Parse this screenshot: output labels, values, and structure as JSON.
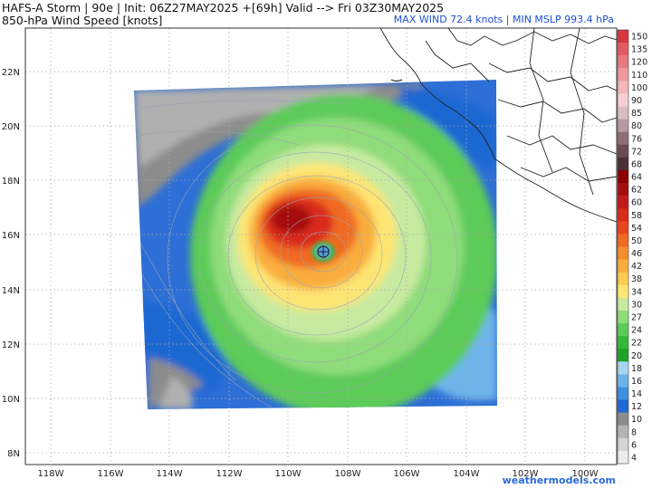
{
  "header": {
    "title_line1": "HAFS-A Storm | 90e | Init: 06Z27MAY2025 +[69h] Valid --> Fri 03Z30MAY2025",
    "title_line2": "850-hPa Wind Speed [knots]",
    "stats": "MAX WIND 72.4 knots | MIN MSLP 993.4 hPa"
  },
  "map": {
    "lat_labels": [
      "22N",
      "20N",
      "18N",
      "16N",
      "14N",
      "12N",
      "10N",
      "8N"
    ],
    "lon_labels": [
      "118W",
      "116W",
      "114W",
      "112W",
      "110W",
      "108W",
      "106W",
      "104W",
      "102W",
      "100W"
    ],
    "storm_center": {
      "lon": -108.9,
      "lat": 15.4
    }
  },
  "colorbar": {
    "levels": [
      "150",
      "135",
      "120",
      "110",
      "100",
      "90",
      "85",
      "80",
      "76",
      "72",
      "68",
      "64",
      "62",
      "60",
      "58",
      "54",
      "50",
      "46",
      "42",
      "38",
      "34",
      "30",
      "27",
      "24",
      "22",
      "20",
      "18",
      "16",
      "14",
      "12",
      "10",
      "8",
      "6",
      "4"
    ],
    "colors": [
      "#d8363f",
      "#e25a63",
      "#e87a82",
      "#ee9aa0",
      "#f3b6ba",
      "#f7cfd2",
      "#d9bfc2",
      "#b79aa0",
      "#8d6e74",
      "#6b4b52",
      "#4a2f35",
      "#8b0000",
      "#a50e0e",
      "#c21a1a",
      "#d92b1a",
      "#e8471e",
      "#f06a24",
      "#f58d2e",
      "#f9ad3c",
      "#fbcb52",
      "#fde573",
      "#c8eaa0",
      "#8fdc7a",
      "#5ccb58",
      "#36b93a",
      "#1fa22a",
      "#a8d6f2",
      "#6eb4ea",
      "#3e8fe0",
      "#1f67d2",
      "#8c8c8c",
      "#b4b4b4",
      "#d4d4d4",
      "#ececec"
    ]
  },
  "credit": "weathermodels.com"
}
